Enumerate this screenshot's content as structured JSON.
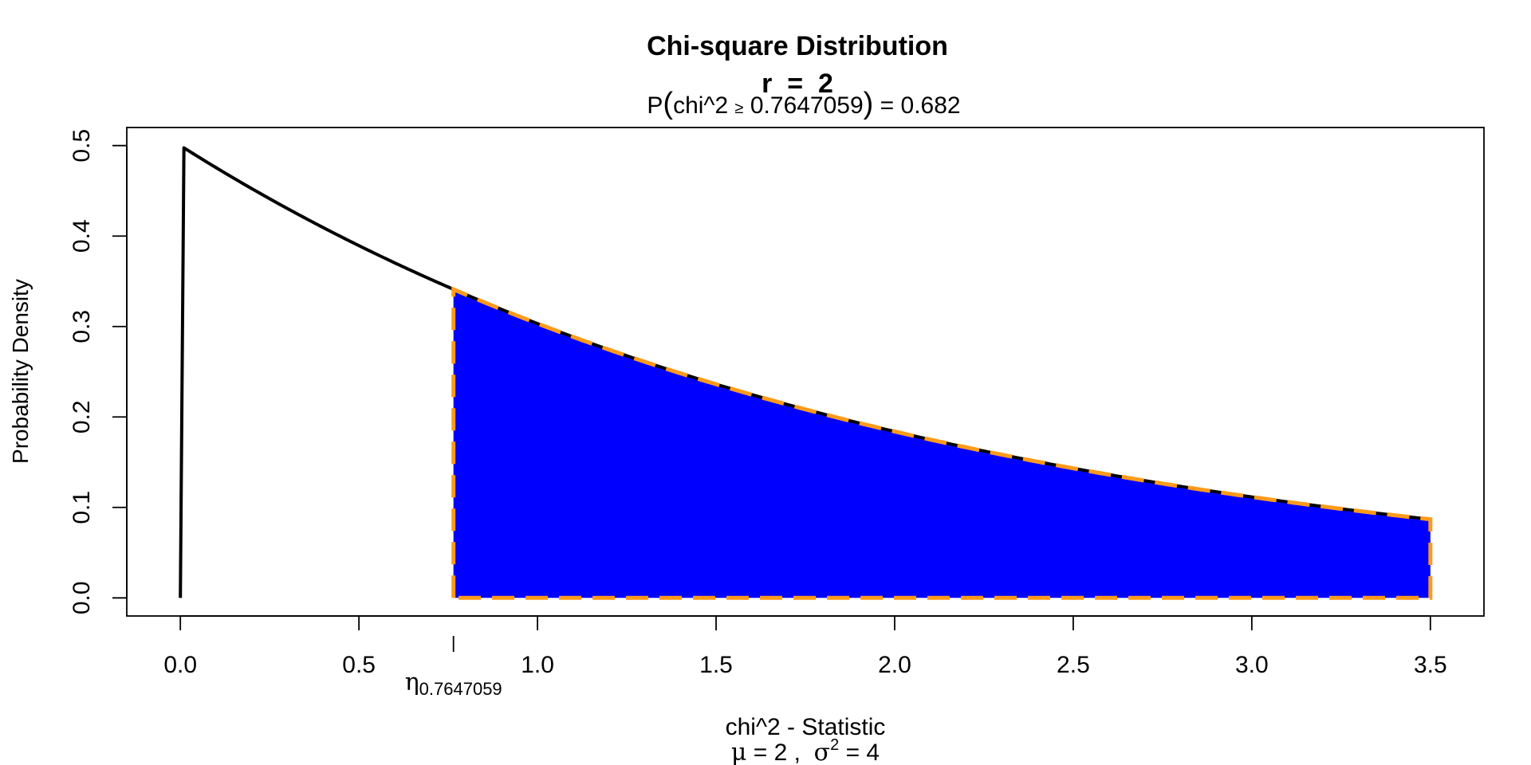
{
  "chart_data": {
    "type": "area",
    "title": "Chi-square Distribution",
    "subtitle_label": "r",
    "subtitle_value": "2",
    "prob_prefix": "P",
    "prob_var": "chi^2",
    "prob_sym": "≥",
    "prob_q": "0.7647059",
    "prob_result": "= 0.682",
    "ylabel": "Probability Density",
    "xlabel": "chi^2 - Statistic",
    "mu_sym": "μ",
    "mu_text": "= 2 ,",
    "sigma_sym": "σ",
    "sigma_exp": "2",
    "sigma_text": "= 4",
    "eta_sym": "η",
    "eta_sub": "0.7647059",
    "xlim": [
      -0.15,
      3.65
    ],
    "ylim": [
      -0.02,
      0.52
    ],
    "x_ticks": [
      0.0,
      0.5,
      1.0,
      1.5,
      2.0,
      2.5,
      3.0,
      3.5
    ],
    "x_tick_labels": [
      "0.0",
      "0.5",
      "1.0",
      "1.5",
      "2.0",
      "2.5",
      "3.0",
      "3.5"
    ],
    "y_ticks": [
      0.0,
      0.1,
      0.2,
      0.3,
      0.4,
      0.5
    ],
    "y_tick_labels": [
      "0.0",
      "0.1",
      "0.2",
      "0.3",
      "0.4",
      "0.5"
    ],
    "df": 2,
    "curve_x_range": [
      0.0,
      3.5
    ],
    "shade_from": 0.7647059,
    "shade_to": 3.5,
    "shade_probability": 0.682,
    "curve_points": [
      {
        "x": 0.0,
        "y": 0.0
      },
      {
        "x": 0.01,
        "y": 0.4975
      },
      {
        "x": 0.5,
        "y": 0.3894
      },
      {
        "x": 0.7647059,
        "y": 0.3412
      },
      {
        "x": 1.0,
        "y": 0.3033
      },
      {
        "x": 1.5,
        "y": 0.2362
      },
      {
        "x": 2.0,
        "y": 0.1839
      },
      {
        "x": 2.5,
        "y": 0.1433
      },
      {
        "x": 3.0,
        "y": 0.1116
      },
      {
        "x": 3.5,
        "y": 0.0869
      }
    ],
    "grid": false,
    "colors": {
      "curve": "#000000",
      "fill": "#0000ff",
      "outline": "#ff9a1a"
    }
  }
}
